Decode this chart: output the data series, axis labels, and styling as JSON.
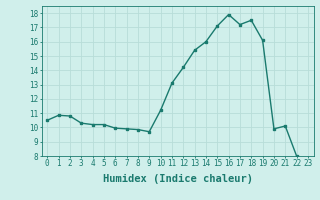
{
  "x": [
    0,
    1,
    2,
    3,
    4,
    5,
    6,
    7,
    8,
    9,
    10,
    11,
    12,
    13,
    14,
    15,
    16,
    17,
    18,
    19,
    20,
    21,
    22,
    23
  ],
  "y": [
    10.5,
    10.85,
    10.8,
    10.3,
    10.2,
    10.2,
    9.95,
    9.9,
    9.85,
    9.7,
    11.2,
    13.1,
    14.2,
    15.4,
    16.0,
    17.1,
    17.9,
    17.2,
    17.5,
    16.1,
    9.9,
    10.1,
    8.0,
    7.8
  ],
  "line_color": "#1a7a6e",
  "marker": "s",
  "marker_size": 2.0,
  "line_width": 1.0,
  "background_color": "#d0efeb",
  "grid_color": "#b8ddd8",
  "xlabel": "Humidex (Indice chaleur)",
  "xlim": [
    -0.5,
    23.5
  ],
  "ylim": [
    8,
    18.5
  ],
  "yticks": [
    8,
    9,
    10,
    11,
    12,
    13,
    14,
    15,
    16,
    17,
    18
  ],
  "xticks": [
    0,
    1,
    2,
    3,
    4,
    5,
    6,
    7,
    8,
    9,
    10,
    11,
    12,
    13,
    14,
    15,
    16,
    17,
    18,
    19,
    20,
    21,
    22,
    23
  ],
  "tick_fontsize": 5.5,
  "xlabel_fontsize": 7.5,
  "tick_color": "#1a7a6e",
  "axis_color": "#1a7a6e"
}
